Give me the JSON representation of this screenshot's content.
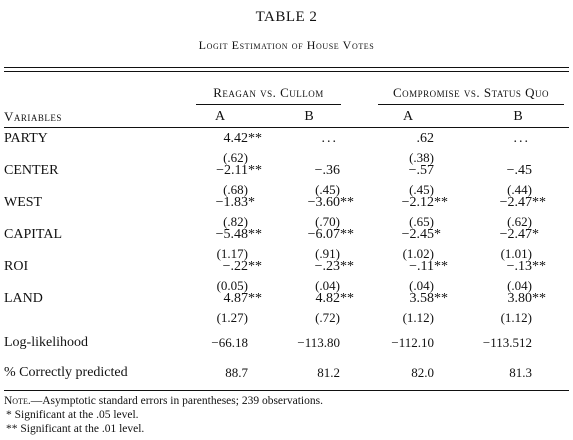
{
  "table": {
    "title": "TABLE 2",
    "subtitle": "Logit Estimation of House Votes",
    "group_headers": [
      "Reagan vs. Cullom",
      "Compromise vs. Status Quo"
    ],
    "variables_header": "Variables",
    "column_headers": [
      "A",
      "B",
      "A",
      "B"
    ],
    "rows": [
      {
        "label": "PARTY",
        "coef": [
          "4.42**",
          "...",
          ".62",
          "..."
        ],
        "se": [
          "(.62)",
          "",
          "(.38)",
          ""
        ]
      },
      {
        "label": "CENTER",
        "coef": [
          "−2.11**",
          "−.36",
          "−.57",
          "−.45"
        ],
        "se": [
          "(.68)",
          "(.45)",
          "(.45)",
          "(.44)"
        ]
      },
      {
        "label": "WEST",
        "coef": [
          "−1.83*",
          "−3.60**",
          "−2.12**",
          "−2.47**"
        ],
        "se": [
          "(.82)",
          "(.70)",
          "(.65)",
          "(.62)"
        ]
      },
      {
        "label": "CAPITAL",
        "coef": [
          "−5.48**",
          "−6.07**",
          "−2.45*",
          "−2.47*"
        ],
        "se": [
          "(1.17)",
          "(.91)",
          "(1.02)",
          "(1.01)"
        ]
      },
      {
        "label": "ROI",
        "coef": [
          "−.22**",
          "−.23**",
          "−.11**",
          "−.13**"
        ],
        "se": [
          "(0.05)",
          "(.04)",
          "(.04)",
          "(.04)"
        ]
      },
      {
        "label": "LAND",
        "coef": [
          "4.87**",
          "4.82**",
          "3.58**",
          "3.80**"
        ],
        "se": [
          "(1.27)",
          "(.72)",
          "(1.12)",
          "(1.12)"
        ]
      }
    ],
    "summary_rows": [
      {
        "label": "Log-likelihood",
        "values": [
          "−66.18",
          "−113.80",
          "−112.10",
          "−113.512"
        ]
      },
      {
        "label": "% Correctly predicted",
        "values": [
          "88.7",
          "81.2",
          "82.0",
          "81.3"
        ]
      }
    ],
    "notes": {
      "note_label": "Note.",
      "note_text": "—Asymptotic standard errors in parentheses; 239 observations.",
      "sig1": "* Significant at the .05 level.",
      "sig2": "** Significant at the .01 level."
    }
  }
}
